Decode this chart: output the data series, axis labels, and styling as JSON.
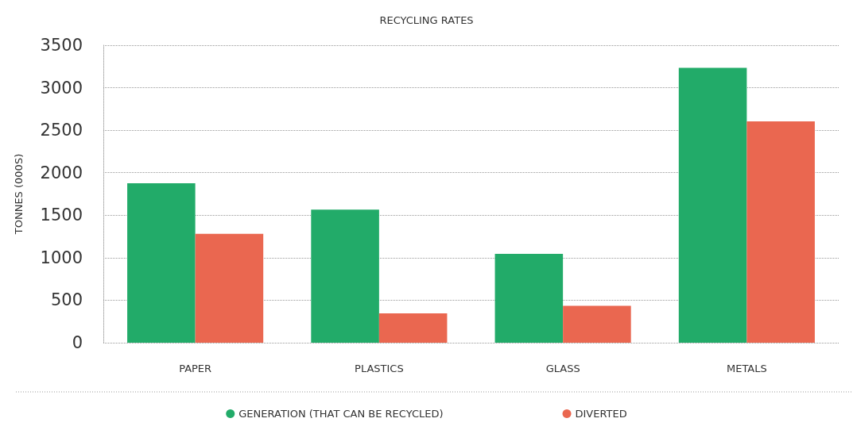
{
  "chart_data": {
    "type": "bar",
    "title": "RECYCLING RATES",
    "ylabel": "TONNES (000S)",
    "categories": [
      "PAPER",
      "PLASTICS",
      "GLASS",
      "METALS"
    ],
    "series": [
      {
        "name": "GENERATION (THAT CAN BE RECYCLED)",
        "color": "#22ab69",
        "values": [
          1875,
          1565,
          1045,
          3235
        ]
      },
      {
        "name": "DIVERTED",
        "color": "#ea6750",
        "values": [
          1280,
          345,
          435,
          2605
        ]
      }
    ],
    "ylim": [
      0,
      3500
    ],
    "yticks": [
      0,
      500,
      1000,
      1500,
      2000,
      2500,
      3000,
      3500
    ],
    "grid": "y",
    "legend": "bottom"
  }
}
